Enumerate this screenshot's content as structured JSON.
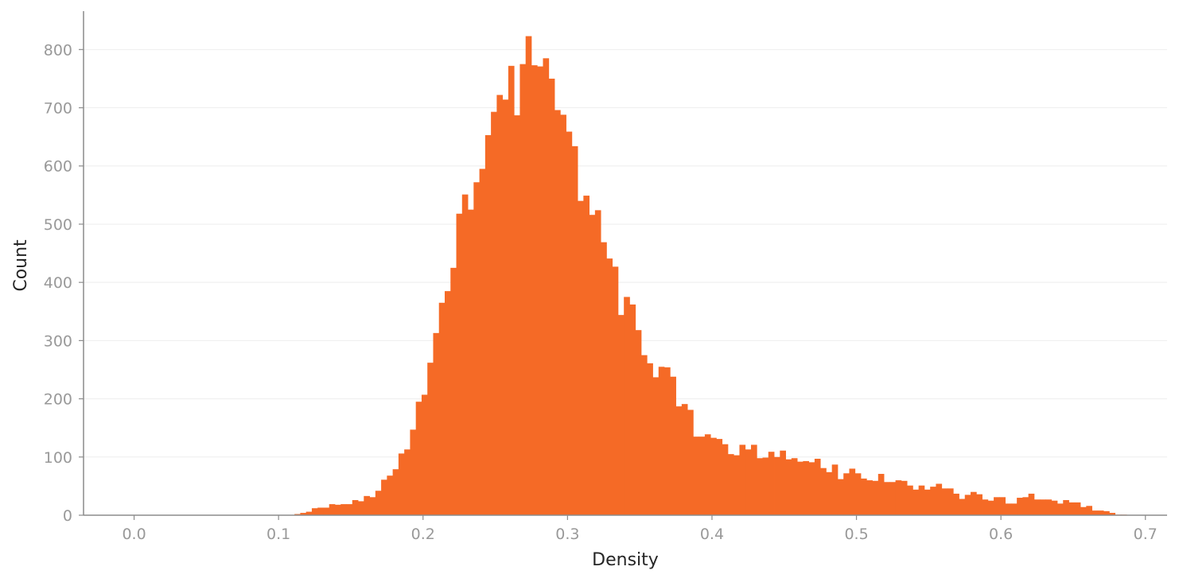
{
  "chart_data": {
    "type": "bar",
    "title": "",
    "xlabel": "Density",
    "ylabel": "Count",
    "xlim": [
      -0.035,
      0.715
    ],
    "ylim": [
      0,
      866
    ],
    "xticks": [
      "0.0",
      "0.1",
      "0.2",
      "0.3",
      "0.4",
      "0.5",
      "0.6",
      "0.7"
    ],
    "yticks": [
      "0",
      "100",
      "200",
      "300",
      "400",
      "500",
      "600",
      "700",
      "800"
    ],
    "grid": "horizontal",
    "bar_color": "#f56a26",
    "bin_start": 0.111,
    "bin_width": 0.004,
    "values": [
      2,
      4,
      6,
      12,
      13,
      13,
      19,
      18,
      19,
      19,
      26,
      24,
      33,
      31,
      42,
      61,
      68,
      79,
      106,
      113,
      147,
      195,
      207,
      262,
      313,
      365,
      385,
      425,
      518,
      551,
      525,
      572,
      595,
      653,
      693,
      722,
      714,
      772,
      687,
      775,
      823,
      773,
      771,
      785,
      750,
      696,
      688,
      659,
      634,
      540,
      549,
      516,
      524,
      469,
      441,
      427,
      344,
      375,
      362,
      318,
      275,
      261,
      237,
      255,
      254,
      238,
      187,
      191,
      181,
      135,
      135,
      139,
      133,
      131,
      122,
      105,
      103,
      121,
      113,
      121,
      98,
      99,
      109,
      100,
      111,
      96,
      98,
      92,
      93,
      91,
      97,
      81,
      74,
      87,
      62,
      72,
      80,
      72,
      63,
      60,
      59,
      71,
      57,
      57,
      60,
      59,
      51,
      44,
      51,
      44,
      49,
      54,
      46,
      46,
      37,
      28,
      35,
      40,
      36,
      27,
      25,
      31,
      31,
      20,
      20,
      30,
      31,
      37,
      27,
      27,
      27,
      25,
      20,
      26,
      22,
      22,
      14,
      16,
      8,
      8,
      7,
      4,
      1,
      1
    ]
  }
}
